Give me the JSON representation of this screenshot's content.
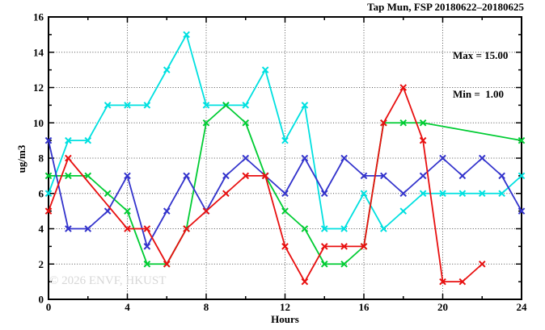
{
  "title": "Tap Mun, FSP 20180622–20180625",
  "legend": {
    "max_label": "Max = 15.00",
    "min_label": "Min =  1.00"
  },
  "watermark": "© 2026 ENVF, HKUST",
  "chart_data": {
    "type": "line",
    "title": "Tap Mun, FSP 20180622–20180625",
    "xlabel": "Hours",
    "ylabel": "ug/m3",
    "xlim": [
      0,
      24
    ],
    "ylim": [
      0,
      16
    ],
    "x_major_ticks": [
      0,
      4,
      8,
      12,
      16,
      20,
      24
    ],
    "x_minor_step": 2,
    "y_major_ticks": [
      0,
      2,
      4,
      6,
      8,
      10,
      12,
      14,
      16
    ],
    "y_minor_step": 1,
    "grid": "dotted",
    "legend_position": "top-right-inside",
    "stats": {
      "max": 15.0,
      "min": 1.0
    },
    "x": [
      0,
      1,
      2,
      3,
      4,
      5,
      6,
      7,
      8,
      9,
      10,
      11,
      12,
      13,
      14,
      15,
      16,
      17,
      18,
      19,
      20,
      21,
      22,
      23,
      24
    ],
    "series": [
      {
        "name": "series-cyan",
        "color": "#00e0e0",
        "values": [
          6,
          9,
          9,
          11,
          11,
          11,
          13,
          15,
          11,
          11,
          11,
          13,
          9,
          11,
          4,
          4,
          6,
          4,
          5,
          6,
          6,
          6,
          6,
          6,
          7
        ]
      },
      {
        "name": "series-green",
        "color": "#00cc33",
        "values": [
          7,
          7,
          7,
          6,
          5,
          2,
          2,
          4,
          10,
          11,
          10,
          7,
          5,
          4,
          2,
          2,
          3,
          10,
          10,
          10,
          null,
          null,
          null,
          null,
          9
        ]
      },
      {
        "name": "series-blue",
        "color": "#3333cc",
        "values": [
          9,
          4,
          4,
          5,
          7,
          3,
          5,
          7,
          5,
          7,
          8,
          7,
          6,
          8,
          6,
          8,
          7,
          7,
          6,
          7,
          8,
          7,
          8,
          7,
          5
        ]
      },
      {
        "name": "series-red",
        "color": "#e81010",
        "values": [
          5,
          8,
          null,
          null,
          4,
          4,
          2,
          4,
          5,
          6,
          7,
          7,
          3,
          1,
          3,
          3,
          3,
          10,
          12,
          9,
          1,
          1,
          2,
          null,
          null
        ]
      }
    ]
  }
}
